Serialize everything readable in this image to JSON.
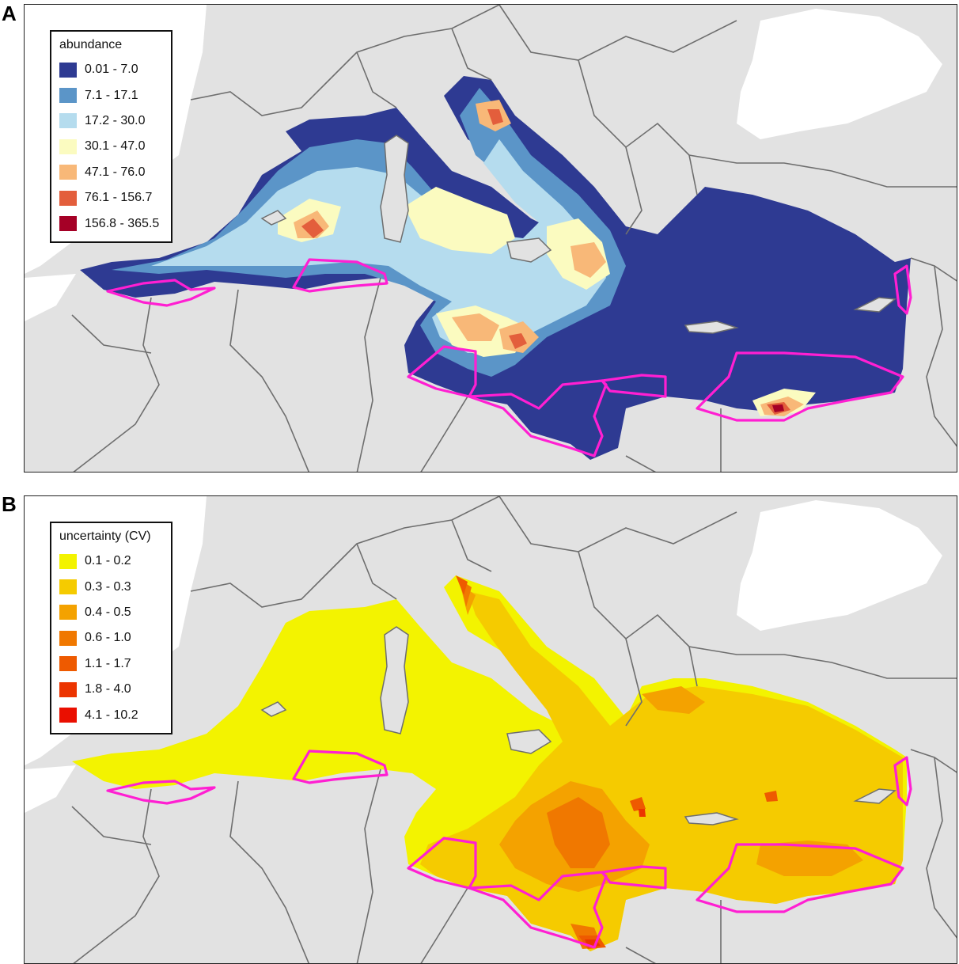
{
  "panels": [
    {
      "letter": "A",
      "legend": {
        "title": "abundance",
        "classes": [
          {
            "label": "0.01 - 7.0",
            "color": "#2e3a92"
          },
          {
            "label": "7.1 - 17.1",
            "color": "#5b95c8"
          },
          {
            "label": "17.2 - 30.0",
            "color": "#b5dcee"
          },
          {
            "label": "30.1 - 47.0",
            "color": "#fbfbc0"
          },
          {
            "label": "47.1 - 76.0",
            "color": "#f8b878"
          },
          {
            "label": "76.1 - 156.7",
            "color": "#e35e3c"
          },
          {
            "label": "156.8 - 365.5",
            "color": "#a50026"
          }
        ]
      }
    },
    {
      "letter": "B",
      "legend": {
        "title": "uncertainty (CV)",
        "classes": [
          {
            "label": "0.1 - 0.2",
            "color": "#f3f300"
          },
          {
            "label": "0.3 - 0.3",
            "color": "#f5cb00"
          },
          {
            "label": "0.4 - 0.5",
            "color": "#f4a200"
          },
          {
            "label": "0.6 - 1.0",
            "color": "#f07800"
          },
          {
            "label": "1.1 - 1.7",
            "color": "#ee5a00"
          },
          {
            "label": "1.8 - 4.0",
            "color": "#ec3400"
          },
          {
            "label": "4.1 - 10.2",
            "color": "#ea0f00"
          }
        ]
      }
    }
  ],
  "colors": {
    "land": "#e2e2e2",
    "sea_outside": "#ffffff",
    "borders": "#6e6e6e",
    "survey_blocks": "#ff1fd2"
  }
}
